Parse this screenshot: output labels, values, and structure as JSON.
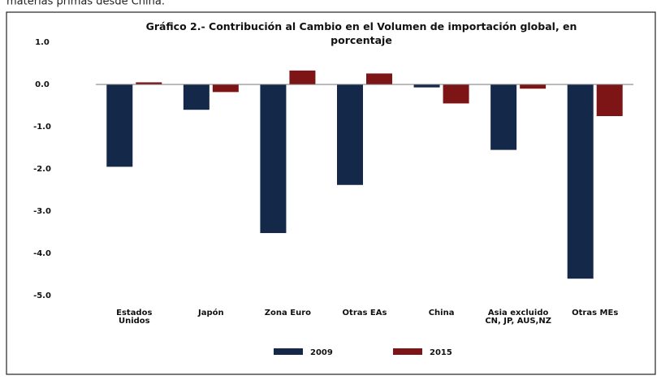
{
  "header_text": "materias primas desde China.",
  "chart_data": {
    "type": "bar",
    "title": "Gráfico 2.- Contribución al Cambio en el Volumen de importación global, en\nporcentaje",
    "categories": [
      "Estados\nUnidos",
      "Japón",
      "Zona Euro",
      "Otras EAs",
      "China",
      "Asia excluido\nCN, JP, AUS,NZ",
      "Otras  MEs"
    ],
    "series": [
      {
        "name": "2009",
        "color": "#14284a",
        "values": [
          -1.95,
          -0.6,
          -3.52,
          -2.38,
          -0.07,
          -1.55,
          -4.6
        ]
      },
      {
        "name": "2015",
        "color": "#7d1517",
        "values": [
          0.05,
          -0.18,
          0.33,
          0.26,
          -0.45,
          -0.1,
          -0.75
        ]
      }
    ],
    "ylim": [
      -5,
      1
    ],
    "yticks": [
      {
        "value": 1,
        "label": "1.0"
      },
      {
        "value": 0,
        "label": "0.0"
      },
      {
        "value": -1,
        "label": "-1.0"
      },
      {
        "value": -2,
        "label": "-2.0"
      },
      {
        "value": -3,
        "label": "-3.0"
      },
      {
        "value": -4,
        "label": "-4.0"
      },
      {
        "value": -5,
        "label": "-5.0"
      }
    ],
    "grid": false,
    "legend": "bottom"
  }
}
